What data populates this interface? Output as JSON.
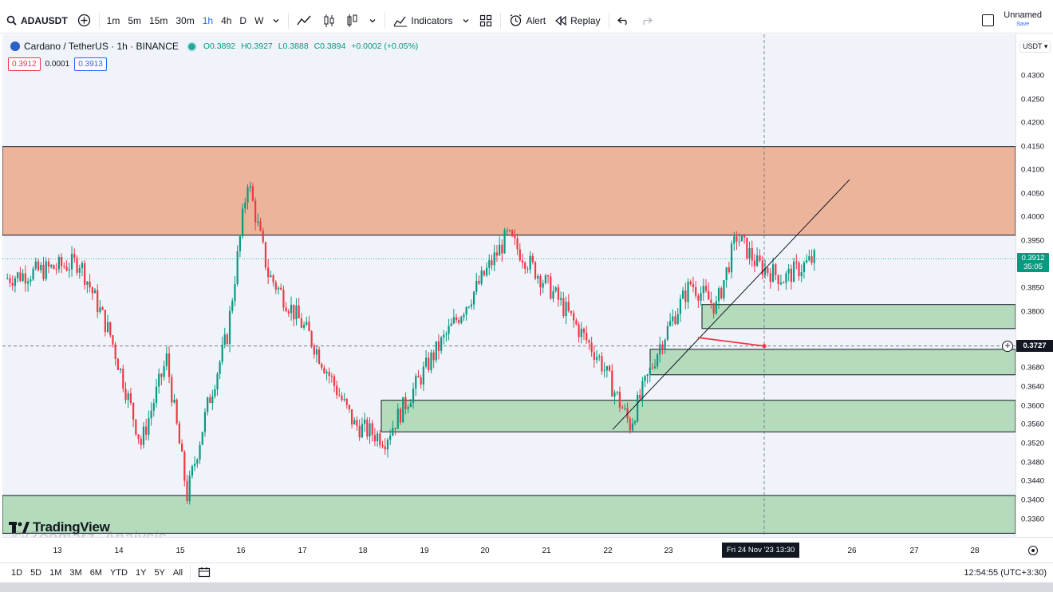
{
  "toolbar": {
    "symbol": "ADAUSDT",
    "timeframes": [
      "1m",
      "5m",
      "15m",
      "30m",
      "1h",
      "4h",
      "D",
      "W"
    ],
    "active_timeframe": "1h",
    "indicators_label": "Indicators",
    "alert_label": "Alert",
    "replay_label": "Replay",
    "layout_name": "Unnamed",
    "save_label": "Save"
  },
  "legend": {
    "title": "Cardano / TetherUS · 1h · BINANCE",
    "open": "O0.3892",
    "high": "H0.3927",
    "low": "L0.3888",
    "close": "C0.3894",
    "change": "+0.0002 (+0.05%)",
    "sell_price": "0.3912",
    "spread": "0.0001",
    "buy_price": "0.3913"
  },
  "price_axis": {
    "currency": "USDT",
    "ticks": [
      "0.4300",
      "0.4250",
      "0.4200",
      "0.4150",
      "0.4100",
      "0.4050",
      "0.4000",
      "0.3950",
      "0.3850",
      "0.3800",
      "0.3680",
      "0.3640",
      "0.3600",
      "0.3560",
      "0.3520",
      "0.3480",
      "0.3440",
      "0.3400",
      "0.3360"
    ],
    "last_price": "0.3912",
    "countdown": "35:05",
    "crosshair_price": "0.3727"
  },
  "time_axis": {
    "ticks": [
      "13",
      "14",
      "15",
      "16",
      "17",
      "18",
      "19",
      "20",
      "21",
      "22",
      "23",
      "26",
      "27",
      "28"
    ],
    "crosshair_label": "Fri 24 Nov '23   13:30"
  },
  "range_buttons": [
    "1D",
    "5D",
    "1M",
    "3M",
    "6M",
    "YTD",
    "1Y",
    "5Y",
    "All"
  ],
  "clock": "12:54:55 (UTC+3:30)",
  "watermark": {
    "brand": "TradingView",
    "author": "Zoomarz_Analysis"
  },
  "colors": {
    "up": "#089981",
    "down": "#f23645",
    "supply_zone": "#ebb49b",
    "demand_zone": "#b4dcbc",
    "accent": "#2962ff"
  },
  "chart_data": {
    "type": "candlestick",
    "symbol": "ADAUSDT",
    "interval": "1h",
    "x_range": [
      "Nov 13",
      "Nov 28"
    ],
    "y_range": [
      0.333,
      0.432
    ],
    "series_path": [
      {
        "date": "Nov 13",
        "price": 0.387
      },
      {
        "date": "Nov 13",
        "price": 0.3905
      },
      {
        "date": "Nov 14",
        "price": 0.375
      },
      {
        "date": "Nov 14",
        "price": 0.352
      },
      {
        "date": "Nov 15",
        "price": 0.37
      },
      {
        "date": "Nov 15",
        "price": 0.341
      },
      {
        "date": "Nov 15",
        "price": 0.36
      },
      {
        "date": "Nov 16",
        "price": 0.375
      },
      {
        "date": "Nov 16",
        "price": 0.408
      },
      {
        "date": "Nov 16",
        "price": 0.388
      },
      {
        "date": "Nov 17",
        "price": 0.375
      },
      {
        "date": "Nov 18",
        "price": 0.356
      },
      {
        "date": "Nov 18",
        "price": 0.353
      },
      {
        "date": "Nov 19",
        "price": 0.37
      },
      {
        "date": "Nov 20",
        "price": 0.385
      },
      {
        "date": "Nov 20",
        "price": 0.396
      },
      {
        "date": "Nov 21",
        "price": 0.384
      },
      {
        "date": "Nov 22",
        "price": 0.37
      },
      {
        "date": "Nov 22",
        "price": 0.356
      },
      {
        "date": "Nov 23",
        "price": 0.373
      },
      {
        "date": "Nov 23",
        "price": 0.386
      },
      {
        "date": "Nov 24",
        "price": 0.381
      },
      {
        "date": "Nov 24",
        "price": 0.396
      },
      {
        "date": "Nov 24",
        "price": 0.39
      },
      {
        "date": "Nov 25",
        "price": 0.387
      },
      {
        "date": "Nov 25",
        "price": 0.3912
      }
    ],
    "zones": [
      {
        "kind": "supply",
        "from_price": 0.3962,
        "to_price": 0.415
      },
      {
        "kind": "demand",
        "from_price": 0.3764,
        "to_price": 0.3815
      },
      {
        "kind": "demand",
        "from_price": 0.3666,
        "to_price": 0.372
      },
      {
        "kind": "demand",
        "from_price": 0.3545,
        "to_price": 0.3612
      },
      {
        "kind": "demand",
        "from_price": 0.333,
        "to_price": 0.341
      }
    ],
    "trendline": {
      "from": {
        "date": "Nov 22",
        "price": 0.355
      },
      "to": {
        "date": "Nov 26",
        "price": 0.408
      }
    },
    "arrow": {
      "from_price": 0.3745,
      "to_price": 0.3727,
      "color": "#f23645"
    },
    "last_price": 0.3912,
    "crosshair_price": 0.3727,
    "grid": false
  }
}
